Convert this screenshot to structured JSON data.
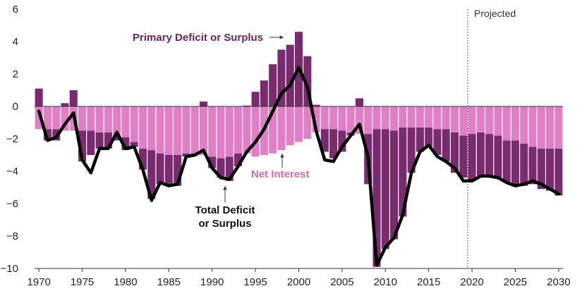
{
  "chart_data": {
    "type": "bar",
    "title": "",
    "xlabel": "",
    "ylabel": "",
    "ylim": [
      -10,
      6
    ],
    "yticks": [
      -10,
      -8,
      -6,
      -4,
      -2,
      0,
      2,
      4,
      6
    ],
    "ytick_labels": [
      "−10",
      "−8",
      "−6",
      "−4",
      "−2",
      "0",
      "2",
      "4",
      "6"
    ],
    "xticks": [
      1970,
      1975,
      1980,
      1985,
      1990,
      1995,
      2000,
      2005,
      2010,
      2015,
      2020,
      2025,
      2030
    ],
    "x": [
      1970,
      1971,
      1972,
      1973,
      1974,
      1975,
      1976,
      1977,
      1978,
      1979,
      1980,
      1981,
      1982,
      1983,
      1984,
      1985,
      1986,
      1987,
      1988,
      1989,
      1990,
      1991,
      1992,
      1993,
      1994,
      1995,
      1996,
      1997,
      1998,
      1999,
      2000,
      2001,
      2002,
      2003,
      2004,
      2005,
      2006,
      2007,
      2008,
      2009,
      2010,
      2011,
      2012,
      2013,
      2014,
      2015,
      2016,
      2017,
      2018,
      2019,
      2020,
      2021,
      2022,
      2023,
      2024,
      2025,
      2026,
      2027,
      2028,
      2029,
      2030
    ],
    "series": [
      {
        "name": "Primary Deficit or Surplus",
        "color": "#7a2a6e",
        "values": [
          1.1,
          -0.7,
          -0.7,
          0.2,
          1.0,
          -1.9,
          -1.5,
          -1.0,
          -1.0,
          -0.3,
          -0.8,
          -0.3,
          -1.3,
          -3.0,
          -1.9,
          -1.9,
          -1.9,
          -0.2,
          -0.1,
          0.3,
          -0.7,
          -1.2,
          -1.5,
          -0.8,
          0.05,
          0.9,
          1.6,
          2.6,
          3.5,
          3.8,
          4.6,
          3.1,
          0.1,
          -1.4,
          -1.8,
          -1.3,
          -0.2,
          0.5,
          -3.1,
          -8.5,
          -7.4,
          -6.7,
          -5.5,
          -2.8,
          -1.5,
          -1.2,
          -1.6,
          -2.0,
          -2.5,
          -2.6,
          -2.9,
          -2.7,
          -2.6,
          -2.6,
          -2.6,
          -2.8,
          -2.6,
          -2.3,
          -2.5,
          -2.6,
          -2.9
        ]
      },
      {
        "name": "Net Interest",
        "color": "#e07fc6",
        "values": [
          -1.4,
          -1.4,
          -1.4,
          -1.5,
          -1.5,
          -1.5,
          -1.5,
          -1.6,
          -1.6,
          -1.8,
          -1.9,
          -2.2,
          -2.6,
          -2.7,
          -2.9,
          -3.0,
          -3.0,
          -2.9,
          -2.9,
          -3.0,
          -3.1,
          -3.2,
          -3.1,
          -2.9,
          -2.9,
          -3.1,
          -3.0,
          -2.9,
          -2.7,
          -2.4,
          -2.2,
          -2.0,
          -1.6,
          -1.4,
          -1.4,
          -1.5,
          -1.6,
          -1.7,
          -1.7,
          -1.4,
          -1.4,
          -1.5,
          -1.3,
          -1.3,
          -1.3,
          -1.3,
          -1.4,
          -1.4,
          -1.6,
          -1.8,
          -1.7,
          -1.6,
          -1.7,
          -1.8,
          -2.1,
          -2.1,
          -2.3,
          -2.5,
          -2.6,
          -2.6,
          -2.6
        ]
      },
      {
        "name": "Total Deficit or Surplus",
        "color": "#000000",
        "values": [
          -0.3,
          -2.1,
          -1.9,
          -1.1,
          -0.4,
          -3.3,
          -4.1,
          -2.6,
          -2.6,
          -1.6,
          -2.6,
          -2.5,
          -3.9,
          -5.8,
          -4.7,
          -4.9,
          -4.8,
          -3.1,
          -3.0,
          -2.7,
          -3.8,
          -4.4,
          -4.5,
          -3.7,
          -2.8,
          -2.2,
          -1.4,
          -0.3,
          0.8,
          1.3,
          2.4,
          1.2,
          -1.5,
          -3.3,
          -3.4,
          -2.5,
          -1.8,
          -1.1,
          -3.1,
          -9.8,
          -8.7,
          -8.1,
          -6.7,
          -4.1,
          -2.8,
          -2.4,
          -3.1,
          -3.4,
          -3.8,
          -4.6,
          -4.6,
          -4.3,
          -4.3,
          -4.4,
          -4.7,
          -4.9,
          -4.8,
          -4.6,
          -4.8,
          -5.1,
          -5.4
        ]
      }
    ],
    "annotations": [
      {
        "text": "Primary Deficit or Surplus"
      },
      {
        "text": "Net Interest"
      },
      {
        "text": "Total Deficit"
      },
      {
        "text": "or Surplus"
      },
      {
        "text": "Projected"
      }
    ],
    "projected_start": 2019.5,
    "grid": false,
    "legend": "none"
  }
}
